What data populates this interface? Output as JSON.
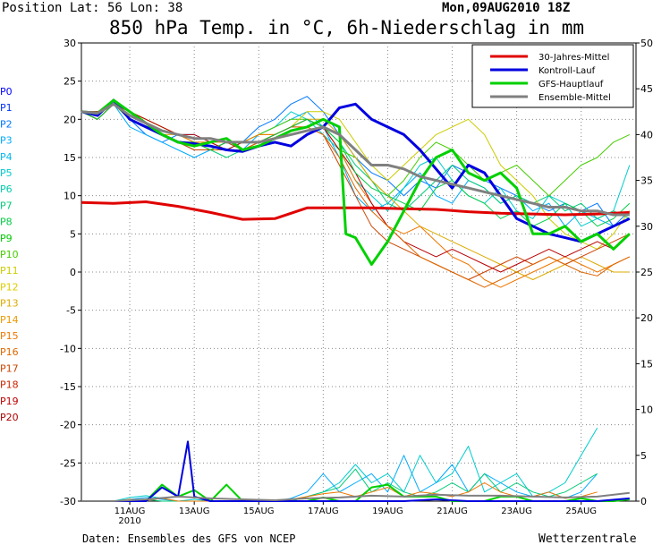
{
  "header": {
    "position": "Position  Lat: 56 Lon: 38",
    "datetime": "Mon,09AUG2010 18Z",
    "title": "850 hPa Temp. in °C, 6h-Niederschlag in mm"
  },
  "footer": {
    "source": "Daten: Ensembles des GFS von NCEP",
    "brand": "Wetterzentrale"
  },
  "chart_data": {
    "type": "line",
    "left_axis": {
      "min": -30,
      "max": 30,
      "ticks": [
        30,
        25,
        20,
        15,
        10,
        5,
        0,
        -5,
        -10,
        -15,
        -20,
        -25,
        -30
      ]
    },
    "right_axis": {
      "min": 0,
      "max": 50,
      "ticks": [
        50,
        45,
        40,
        35,
        30,
        25,
        20,
        15,
        10,
        5,
        0
      ]
    },
    "x_ticks": [
      {
        "label": "11AUG",
        "sub": "2010",
        "x": 1.5
      },
      {
        "label": "13AUG",
        "sub": "",
        "x": 3.5
      },
      {
        "label": "15AUG",
        "sub": "",
        "x": 5.5
      },
      {
        "label": "17AUG",
        "sub": "",
        "x": 7.5
      },
      {
        "label": "19AUG",
        "sub": "",
        "x": 9.5
      },
      {
        "label": "21AUG",
        "sub": "",
        "x": 11.5
      },
      {
        "label": "23AUG",
        "sub": "",
        "x": 13.5
      },
      {
        "label": "25AUG",
        "sub": "",
        "x": 15.5
      }
    ],
    "x_range": [
      0,
      17.2
    ],
    "grid": true,
    "legend_position": "top-right",
    "legend": [
      {
        "name": "30-Jahres-Mittel",
        "color": "#e00000"
      },
      {
        "name": "Kontroll-Lauf",
        "color": "#0000e0"
      },
      {
        "name": "GFS-Hauptlauf",
        "color": "#00d000"
      },
      {
        "name": "Ensemble-Mittel",
        "color": "#808080"
      }
    ],
    "member_labels": [
      {
        "name": "P0",
        "color": "#0000ff"
      },
      {
        "name": "P1",
        "color": "#0033ff"
      },
      {
        "name": "P2",
        "color": "#0077ff"
      },
      {
        "name": "P3",
        "color": "#00aaff"
      },
      {
        "name": "P4",
        "color": "#00bbee"
      },
      {
        "name": "P5",
        "color": "#00cccc"
      },
      {
        "name": "P6",
        "color": "#00ccaa"
      },
      {
        "name": "P7",
        "color": "#00cc77"
      },
      {
        "name": "P8",
        "color": "#00cc44"
      },
      {
        "name": "P9",
        "color": "#00cc00"
      },
      {
        "name": "P10",
        "color": "#44cc00"
      },
      {
        "name": "P11",
        "color": "#cccc00"
      },
      {
        "name": "P12",
        "color": "#ddcc00"
      },
      {
        "name": "P13",
        "color": "#ddaa00"
      },
      {
        "name": "P14",
        "color": "#ee9900"
      },
      {
        "name": "P15",
        "color": "#ee7700"
      },
      {
        "name": "P16",
        "color": "#dd6600"
      },
      {
        "name": "P17",
        "color": "#cc4400"
      },
      {
        "name": "P18",
        "color": "#cc2200"
      },
      {
        "name": "P19",
        "color": "#bb0000"
      },
      {
        "name": "P20",
        "color": "#aa0000"
      }
    ],
    "series": [
      {
        "name": "30-Jahres-Mittel",
        "color": "#e00000",
        "axis": "left",
        "x": [
          0,
          1,
          2,
          3,
          4,
          5,
          6,
          7,
          8,
          9,
          10,
          11,
          12,
          13,
          14,
          15,
          16,
          17
        ],
        "y": [
          9.1,
          9.0,
          9.2,
          8.6,
          7.8,
          6.9,
          7.0,
          8.4,
          8.4,
          8.4,
          8.3,
          8.2,
          7.9,
          7.7,
          7.6,
          7.5,
          7.6,
          7.8
        ]
      },
      {
        "name": "Kontroll-Lauf",
        "color": "#0000e0",
        "axis": "left",
        "x": [
          0,
          0.5,
          1,
          1.5,
          2,
          2.5,
          3,
          3.5,
          4,
          4.5,
          5,
          5.5,
          6,
          6.5,
          7,
          7.5,
          8,
          8.5,
          9,
          9.5,
          10,
          10.5,
          11,
          11.5,
          12,
          12.5,
          13,
          13.5,
          14,
          14.5,
          15,
          15.5,
          16,
          16.5,
          17
        ],
        "y": [
          21,
          20.5,
          22.5,
          20,
          19,
          18,
          17,
          16.8,
          16.5,
          16,
          15.8,
          16.5,
          17,
          16.5,
          18,
          19,
          21.5,
          22,
          20,
          19,
          18,
          16,
          13.5,
          11,
          14,
          13,
          10,
          7,
          6,
          5,
          4.5,
          4,
          5,
          6,
          7
        ]
      },
      {
        "name": "GFS-Hauptlauf",
        "color": "#00d000",
        "axis": "left",
        "x": [
          0,
          0.5,
          1,
          1.5,
          2,
          2.5,
          3,
          3.5,
          4,
          4.5,
          5,
          5.5,
          6,
          6.5,
          7,
          7.5,
          8,
          8.2,
          8.5,
          9,
          9.5,
          10,
          10.5,
          11,
          11.5,
          12,
          12.5,
          13,
          13.5,
          14,
          14.5,
          15,
          15.5,
          16,
          16.5,
          17
        ],
        "y": [
          21,
          20.8,
          22.5,
          21,
          19.5,
          18,
          17,
          16.5,
          17,
          17.5,
          16,
          16.5,
          17.5,
          18.5,
          19,
          20,
          19,
          5,
          4.5,
          1,
          4,
          8,
          12,
          15,
          16,
          13,
          12,
          13,
          11,
          5,
          5,
          6,
          4,
          5,
          3,
          5
        ]
      },
      {
        "name": "Ensemble-Mittel",
        "color": "#808080",
        "axis": "left",
        "x": [
          0,
          0.5,
          1,
          1.5,
          2,
          2.5,
          3,
          3.5,
          4,
          4.5,
          5,
          5.5,
          6,
          6.5,
          7,
          7.5,
          8,
          8.5,
          9,
          9.5,
          10,
          10.5,
          11,
          11.5,
          12,
          12.5,
          13,
          13.5,
          14,
          14.5,
          15,
          15.5,
          16,
          16.5,
          17
        ],
        "y": [
          21,
          20.8,
          22,
          20.5,
          19.5,
          18.5,
          18,
          17.5,
          17.5,
          17,
          17,
          17,
          17.5,
          18,
          18.5,
          19,
          18,
          16,
          14,
          14,
          13.5,
          12.5,
          12,
          11.5,
          11,
          10.5,
          10,
          9.5,
          9,
          8.5,
          8.5,
          8,
          8,
          7.5,
          7.5
        ]
      },
      {
        "name": "GFS-Hauptlauf Niederschlag",
        "color": "#00d000",
        "axis": "right",
        "x": [
          0,
          1,
          2,
          2.5,
          3,
          3.5,
          4,
          4.5,
          5,
          5.5,
          6,
          6.5,
          7,
          7.5,
          8,
          8.5,
          9,
          9.5,
          10,
          10.5,
          11,
          11.5,
          12,
          12.5,
          13,
          13.5,
          14,
          14.5,
          15,
          15.5,
          16,
          16.5,
          17
        ],
        "y": [
          0,
          0,
          0,
          1.8,
          0.5,
          1.2,
          0,
          1.8,
          0,
          0,
          0,
          0,
          0,
          0.4,
          0,
          0,
          1.5,
          1.8,
          0.5,
          0.5,
          0.5,
          0,
          0,
          0,
          0.5,
          0.5,
          0,
          0,
          0,
          0.3,
          0,
          0,
          0.2
        ]
      },
      {
        "name": "Kontroll-Lauf Niederschlag",
        "color": "#0000e0",
        "axis": "right",
        "x": [
          0,
          1,
          2,
          2.5,
          3,
          3.3,
          3.5,
          4,
          4.5,
          5,
          5.5,
          6,
          7,
          8,
          9,
          10,
          11,
          12,
          13,
          14,
          15,
          16,
          17
        ],
        "y": [
          0,
          0,
          0,
          1.5,
          0.5,
          6.5,
          0.5,
          0,
          0,
          0,
          0,
          0,
          0,
          0,
          0,
          0,
          0.2,
          0,
          0,
          0,
          0,
          0,
          0.3
        ]
      },
      {
        "name": "Ensemble-Mittel Niederschlag",
        "color": "#808080",
        "axis": "right",
        "x": [
          0,
          1,
          2,
          3,
          4,
          5,
          6,
          7,
          8,
          9,
          10,
          11,
          12,
          13,
          14,
          15,
          16,
          17
        ],
        "y": [
          0,
          0,
          0.2,
          0.5,
          0.3,
          0.2,
          0.1,
          0.3,
          0.4,
          0.6,
          0.5,
          0.7,
          0.6,
          0.6,
          0.5,
          0.4,
          0.5,
          0.9
        ]
      }
    ],
    "members": [
      {
        "color": "#0077ff",
        "y": [
          21,
          20,
          22,
          20,
          18,
          17,
          18,
          18,
          17,
          16,
          17,
          19,
          20,
          22,
          23,
          21,
          18,
          15,
          13,
          12,
          10,
          12,
          11,
          14,
          13,
          12,
          11,
          10,
          9,
          8,
          9,
          8,
          9,
          6,
          8
        ]
      },
      {
        "color": "#00aaff",
        "y": [
          21,
          20,
          22,
          19,
          18,
          17,
          16,
          15,
          16,
          17,
          16,
          18,
          19,
          20,
          21,
          19,
          15,
          10,
          8,
          9,
          11,
          13,
          10,
          9,
          12,
          11,
          9,
          10,
          8,
          9,
          6,
          8,
          7,
          6,
          7
        ]
      },
      {
        "color": "#00cccc",
        "y": [
          21,
          21,
          22,
          20,
          19,
          18,
          17,
          17,
          16,
          16,
          17,
          18,
          19,
          21,
          20,
          18,
          16,
          12,
          10,
          8,
          11,
          14,
          15,
          12,
          10,
          9,
          11,
          8,
          7,
          10,
          9,
          6,
          7,
          8,
          14
        ]
      },
      {
        "color": "#00cc77",
        "y": [
          21,
          20,
          22,
          20,
          19,
          18,
          17,
          16,
          16,
          15,
          16,
          17,
          18,
          19,
          20,
          19,
          17,
          14,
          12,
          9,
          8,
          10,
          12,
          14,
          12,
          11,
          9,
          10,
          9,
          10,
          8,
          9,
          7,
          8,
          7
        ]
      },
      {
        "color": "#44cc00",
        "y": [
          21,
          20,
          22,
          21,
          20,
          19,
          18,
          17,
          16,
          17,
          17,
          18,
          19,
          20,
          20,
          19,
          16,
          15,
          12,
          10,
          12,
          15,
          17,
          16,
          14,
          12,
          13,
          14,
          12,
          10,
          12,
          14,
          15,
          17,
          18
        ]
      },
      {
        "color": "#cccc00",
        "y": [
          21,
          20,
          22,
          20,
          19,
          18,
          17,
          17,
          16,
          16,
          17,
          18,
          18,
          19,
          21,
          21,
          20,
          17,
          14,
          12,
          14,
          16,
          18,
          19,
          20,
          18,
          14,
          12,
          10,
          7,
          5,
          4,
          3,
          5,
          8
        ]
      },
      {
        "color": "#ddaa00",
        "y": [
          21,
          21,
          22,
          20,
          19,
          18,
          18,
          17,
          17,
          16,
          16,
          17,
          18,
          19,
          20,
          20,
          18,
          15,
          12,
          10,
          8,
          6,
          5,
          4,
          3,
          2,
          1,
          0,
          -1,
          0,
          1,
          2,
          1,
          0,
          0
        ]
      },
      {
        "color": "#ee7700",
        "y": [
          21,
          20,
          22,
          21,
          20,
          19,
          18,
          17,
          17,
          17,
          17,
          18,
          18,
          19,
          20,
          19,
          16,
          12,
          9,
          6,
          5,
          6,
          4,
          2,
          1,
          -1,
          -2,
          -1,
          0,
          1,
          2,
          1,
          0,
          1,
          2
        ]
      },
      {
        "color": "#cc4400",
        "y": [
          21,
          20,
          22,
          20,
          19,
          18,
          17,
          16,
          16,
          17,
          16,
          17,
          18,
          19,
          19,
          18,
          14,
          10,
          6,
          4,
          3,
          2,
          1,
          0,
          -1,
          0,
          1,
          2,
          1,
          2,
          1,
          2,
          3,
          4,
          5
        ]
      },
      {
        "color": "#bb0000",
        "y": [
          21,
          21,
          22,
          21,
          20,
          19,
          18,
          18,
          17,
          16,
          17,
          17,
          18,
          19,
          20,
          19,
          16,
          13,
          9,
          6,
          4,
          3,
          2,
          3,
          2,
          1,
          0,
          1,
          2,
          3,
          2,
          3,
          4,
          3,
          5
        ]
      },
      {
        "color": "#dd6600",
        "y": [
          21,
          20,
          22,
          20,
          19,
          18,
          17,
          17,
          16,
          16,
          16,
          17,
          18,
          19,
          19,
          18,
          15,
          11,
          8,
          6,
          4,
          2,
          1,
          0,
          -1,
          -2,
          -1,
          0,
          1,
          2,
          1,
          0,
          -0.5,
          1,
          2
        ]
      },
      {
        "color": "#00cc44",
        "y": [
          21,
          20,
          22,
          20,
          19,
          18,
          17,
          17,
          16,
          17,
          17,
          17,
          18,
          19,
          20,
          19,
          17,
          13,
          11,
          10,
          9,
          8,
          11,
          12,
          10,
          9,
          7,
          8,
          6,
          7,
          9,
          8,
          6,
          7,
          9
        ]
      }
    ],
    "member_precip": [
      {
        "color": "#00cccc",
        "y": [
          0,
          0,
          0,
          0.4,
          0.6,
          0.3,
          0,
          0.2,
          0,
          0,
          0,
          0,
          0,
          0,
          0.5,
          1,
          2,
          4,
          2,
          3,
          1,
          5,
          2,
          3,
          6,
          1,
          2,
          3,
          0.5,
          1,
          2,
          5,
          8
        ]
      },
      {
        "color": "#00aaff",
        "y": [
          0,
          0,
          0,
          0.2,
          0.4,
          0.2,
          0,
          0,
          0,
          0,
          0,
          0,
          0,
          0.3,
          1,
          3,
          1,
          2,
          3,
          1,
          5,
          1,
          2,
          4,
          1,
          3,
          2,
          1,
          0.5,
          1,
          0.3,
          1,
          3
        ]
      },
      {
        "color": "#00cc77",
        "y": [
          0,
          0,
          0,
          0.1,
          0.2,
          0,
          0,
          0,
          0,
          0,
          0,
          0,
          0,
          0,
          0.5,
          1,
          1.5,
          3.5,
          1,
          2,
          1,
          0.5,
          1,
          2,
          1,
          3,
          1,
          2,
          1,
          0.5,
          1,
          2,
          3
        ]
      },
      {
        "color": "#ee7700",
        "y": [
          0,
          0,
          0,
          0.2,
          0.1,
          0.3,
          0,
          0,
          0,
          0,
          0,
          0,
          0,
          0.2,
          0.5,
          0.8,
          1,
          0.5,
          1,
          1.5,
          0.5,
          1,
          0.8,
          0.5,
          1,
          2,
          1,
          0.5,
          0.5,
          1,
          0.3,
          0.5,
          1
        ]
      }
    ]
  }
}
